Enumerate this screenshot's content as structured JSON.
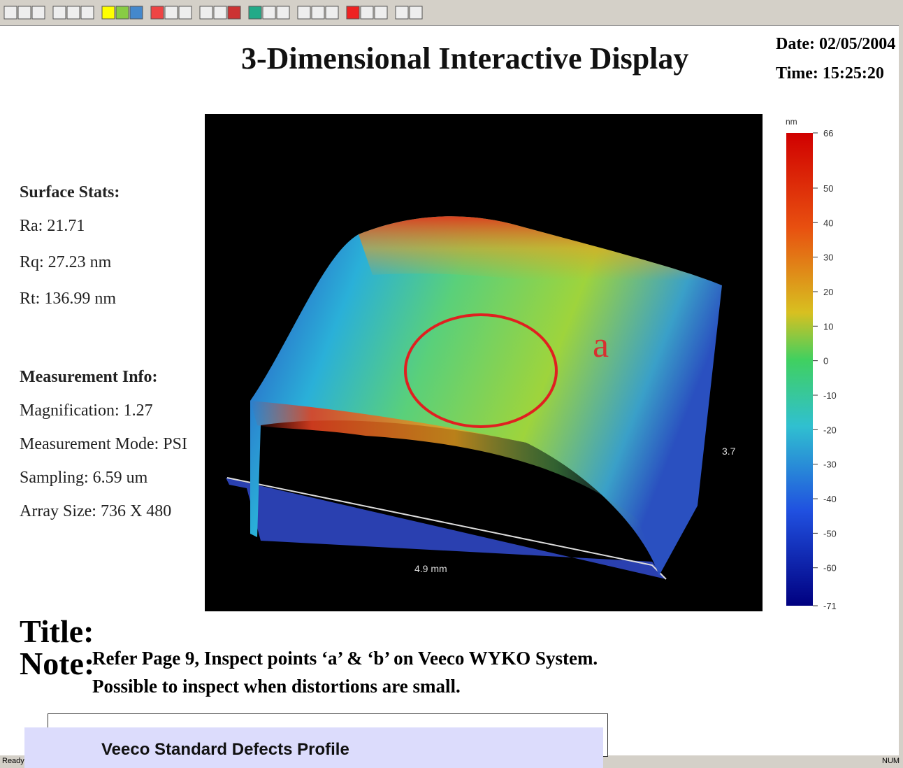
{
  "header": {
    "title": "3-Dimensional Interactive Display",
    "date": "Date: 02/05/2004",
    "time": "Time: 15:25:20"
  },
  "surface_stats": {
    "heading": "Surface Stats:",
    "items": [
      "Ra: 21.71",
      "Rq: 27.23 nm",
      "Rt: 136.99 nm"
    ]
  },
  "measurement_info": {
    "heading": "Measurement Info:",
    "items": [
      "Magnification: 1.27",
      "Measurement Mode: PSI",
      "Sampling: 6.59 um",
      "Array Size: 736 X 480"
    ]
  },
  "plot": {
    "annotation": "a",
    "x_label": "4.9 mm",
    "y_label": "3.7"
  },
  "colorbar": {
    "unit": "nm",
    "lim": [
      -71,
      66
    ],
    "ticks": [
      66,
      50,
      40,
      30,
      20,
      10,
      0,
      -10,
      -20,
      -30,
      -40,
      -50,
      -60,
      -71
    ]
  },
  "notes": {
    "title_label": "Title:",
    "note_label": "Note:",
    "lines": [
      "Refer Page 9, Inspect points ‘a’ & ‘b’ on Veeco WYKO System.",
      "Possible to inspect when distortions are small."
    ]
  },
  "status_bar": {
    "text": "Ready",
    "indicator": "NUM"
  },
  "footer": {
    "caption": "Veeco Standard Defects Profile"
  }
}
